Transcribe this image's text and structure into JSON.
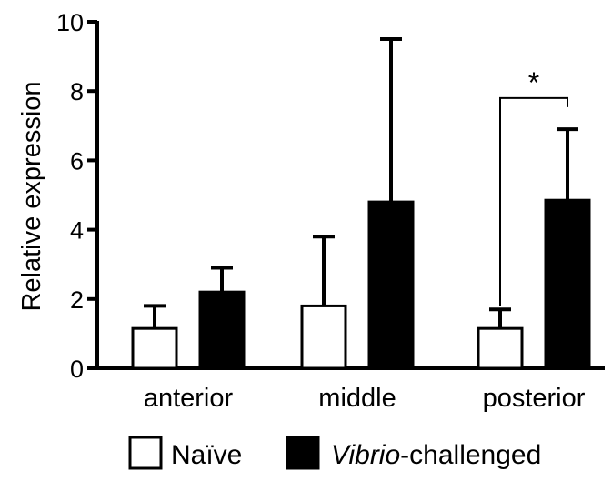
{
  "chart_data": {
    "type": "bar",
    "ylabel": "Relative expression",
    "ylim": [
      0,
      10
    ],
    "yticks": [
      "0",
      "2",
      "4",
      "6",
      "8",
      "10"
    ],
    "categories": [
      "anterior",
      "middle",
      "posterior"
    ],
    "series": [
      {
        "name": "Naïve",
        "values": [
          1.15,
          1.8,
          1.15
        ],
        "error_upper": [
          1.8,
          3.8,
          1.7
        ],
        "fill": "#ffffff",
        "stroke": "#000000"
      },
      {
        "name": "Vibrio-challenged",
        "name_italic": "Vibrio",
        "name_rest": "-challenged",
        "values": [
          2.2,
          4.8,
          4.85
        ],
        "error_upper": [
          2.9,
          9.5,
          6.9
        ],
        "fill": "#000000",
        "stroke": "#000000"
      }
    ],
    "annotations": [
      {
        "category": "posterior",
        "text": "*",
        "type": "significance-bracket",
        "y": 7.8
      }
    ],
    "grid": false,
    "legend": "bottom"
  }
}
